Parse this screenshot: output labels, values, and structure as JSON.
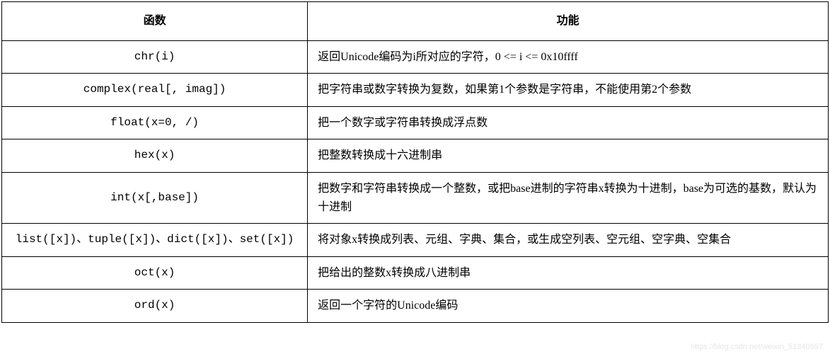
{
  "table": {
    "columns": [
      {
        "label": "函数",
        "width_pct": 37,
        "align": "center",
        "font_weight": "bold"
      },
      {
        "label": "功能",
        "width_pct": 63,
        "align": "center",
        "font_weight": "bold"
      }
    ],
    "rows": [
      {
        "func": "chr(i)",
        "desc": "返回Unicode编码为i所对应的字符，0 <= i <= 0x10ffff"
      },
      {
        "func": "complex(real[, imag])",
        "desc": "把字符串或数字转换为复数，如果第1个参数是字符串，不能使用第2个参数"
      },
      {
        "func": "float(x=0, /)",
        "desc": "把一个数字或字符串转换成浮点数"
      },
      {
        "func": "hex(x)",
        "desc": "把整数转换成十六进制串"
      },
      {
        "func": "int(x[,base])",
        "desc": "把数字和字符串转换成一个整数，或把base进制的字符串x转换为十进制，base为可选的基数，默认为十进制"
      },
      {
        "func": "list([x])、tuple([x])、dict([x])、set([x])",
        "desc": "将对象x转换成列表、元组、字典、集合，或生成空列表、空元组、空字典、空集合"
      },
      {
        "func": "oct(x)",
        "desc": "把给出的整数x转换成八进制串"
      },
      {
        "func": "ord(x)",
        "desc": "返回一个字符的Unicode编码"
      }
    ],
    "border_color": "#000000",
    "background_color": "#ffffff",
    "header_fontsize": 16,
    "cell_fontsize": 16,
    "row_padding_v": 10,
    "row_padding_h": 14,
    "line_height": 1.6
  },
  "watermark": "https://blog.csdn.net/weixin_51340957"
}
